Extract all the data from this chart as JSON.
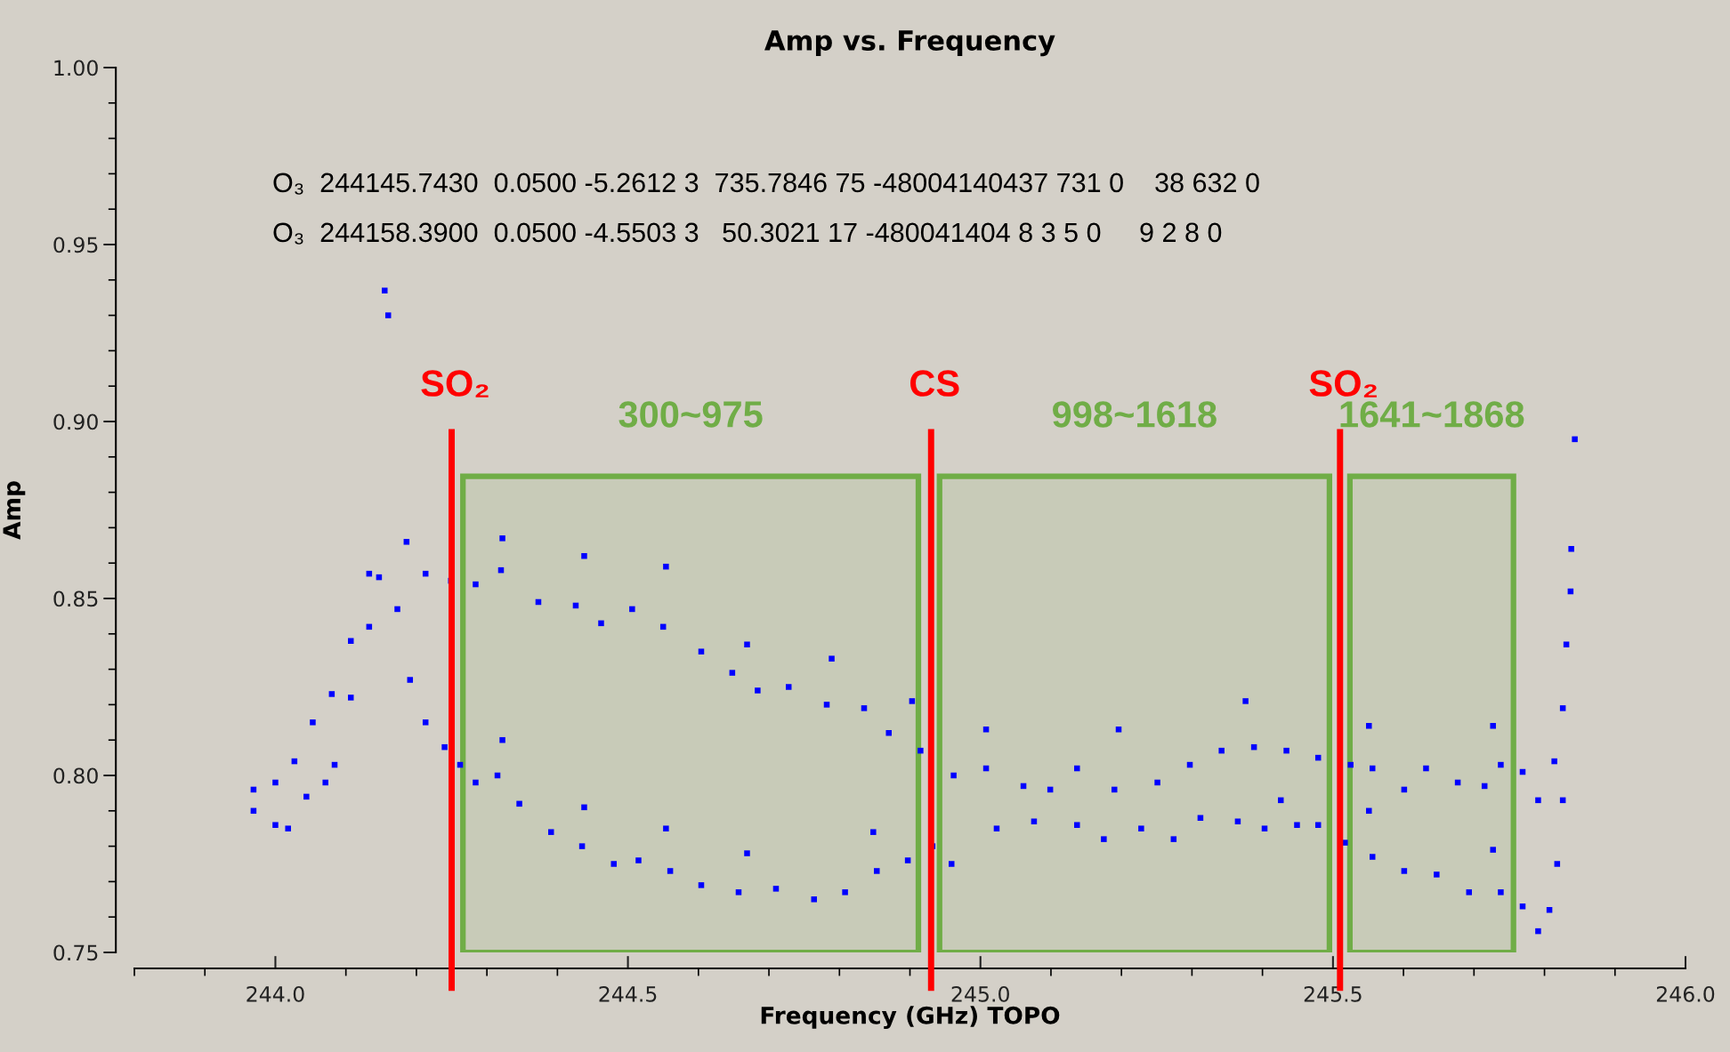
{
  "chart_data": {
    "type": "scatter",
    "title": "Amp vs. Frequency",
    "xlabel": "Frequency (GHz) TOPO",
    "ylabel": "Amp",
    "xlim": [
      243.8,
      246.0
    ],
    "ylim": [
      0.75,
      1.0
    ],
    "xticks": [
      {
        "value": 244,
        "label": "244.0"
      },
      244.5,
      {
        "value": 245,
        "label": "245.0"
      },
      245.5,
      {
        "value": 246,
        "label": "246.0"
      }
    ],
    "yticks": [
      0.75,
      {
        "value": 0.8,
        "label": "0.80"
      },
      0.85,
      {
        "value": 0.9,
        "label": "0.90"
      },
      0.95,
      {
        "value": 1.0,
        "label": "1.00"
      }
    ],
    "grid": false,
    "legend": false,
    "marker": "square",
    "series": [
      {
        "color": "#0000ff",
        "x": [
          243.969,
          244.0,
          244.027,
          244.053,
          244.08,
          244.107,
          244.133,
          244.155,
          244.186,
          244.213,
          244.249,
          244.284,
          244.32,
          244.373,
          244.426,
          244.462,
          244.506,
          244.55,
          244.604,
          244.648,
          244.684,
          244.728,
          244.782,
          244.835,
          244.87,
          244.915,
          244.962,
          245.008,
          245.061,
          245.099,
          245.137,
          245.19,
          245.251,
          245.297,
          245.342,
          245.388,
          245.434,
          245.479,
          245.525,
          245.556,
          245.601,
          245.632,
          245.677,
          245.715,
          245.738,
          245.769,
          245.791,
          245.814,
          245.826,
          245.831,
          245.837,
          245.838,
          245.843,
          244.322,
          244.438,
          244.554,
          244.669,
          244.789,
          244.903,
          245.008,
          245.196,
          245.376,
          245.551,
          245.727
        ],
        "values": [
          0.796,
          0.798,
          0.804,
          0.815,
          0.823,
          0.838,
          0.857,
          0.937,
          0.866,
          0.857,
          0.855,
          0.854,
          0.858,
          0.849,
          0.848,
          0.843,
          0.847,
          0.842,
          0.835,
          0.829,
          0.824,
          0.825,
          0.82,
          0.819,
          0.812,
          0.807,
          0.8,
          0.802,
          0.797,
          0.796,
          0.802,
          0.796,
          0.798,
          0.803,
          0.807,
          0.808,
          0.807,
          0.805,
          0.803,
          0.802,
          0.796,
          0.802,
          0.798,
          0.797,
          0.803,
          0.801,
          0.793,
          0.804,
          0.819,
          0.837,
          0.852,
          0.864,
          0.895,
          0.867,
          0.862,
          0.859,
          0.837,
          0.833,
          0.821,
          0.813,
          0.813,
          0.821,
          0.814,
          0.814
        ]
      },
      {
        "color": "#0000ff",
        "x": [
          243.969,
          244.0,
          244.018,
          244.044,
          244.071,
          244.084,
          244.107,
          244.133,
          244.147,
          244.16,
          244.173,
          244.191,
          244.213,
          244.24,
          244.262,
          244.284,
          244.315,
          244.346,
          244.391,
          244.435,
          244.48,
          244.515,
          244.56,
          244.604,
          244.657,
          244.71,
          244.764,
          244.808,
          244.853,
          244.897,
          244.932,
          244.959,
          245.023,
          245.076,
          245.137,
          245.175,
          245.228,
          245.274,
          245.312,
          245.365,
          245.403,
          245.426,
          245.449,
          245.479,
          245.517,
          245.556,
          245.601,
          245.647,
          245.693,
          245.738,
          245.769,
          245.791,
          245.807,
          245.818,
          245.826,
          244.322,
          244.438,
          244.554,
          244.669,
          244.848,
          245.551,
          245.727
        ],
        "values": [
          0.79,
          0.786,
          0.785,
          0.794,
          0.798,
          0.803,
          0.822,
          0.842,
          0.856,
          0.93,
          0.847,
          0.827,
          0.815,
          0.808,
          0.803,
          0.798,
          0.8,
          0.792,
          0.784,
          0.78,
          0.775,
          0.776,
          0.773,
          0.769,
          0.767,
          0.768,
          0.765,
          0.767,
          0.773,
          0.776,
          0.78,
          0.775,
          0.785,
          0.787,
          0.786,
          0.782,
          0.785,
          0.782,
          0.788,
          0.787,
          0.785,
          0.793,
          0.786,
          0.786,
          0.781,
          0.777,
          0.773,
          0.772,
          0.767,
          0.767,
          0.763,
          0.756,
          0.762,
          0.775,
          0.793,
          0.81,
          0.791,
          0.785,
          0.778,
          0.784,
          0.79,
          0.779
        ]
      }
    ],
    "ref_lines": [
      {
        "axis": "x",
        "value": 244.25,
        "label": "SO₂",
        "color": "#ff0000",
        "line_style": "solid"
      },
      {
        "axis": "x",
        "value": 244.93,
        "label": "CS",
        "color": "#ff0000",
        "line_style": "solid"
      },
      {
        "axis": "x",
        "value": 245.51,
        "label": "SO₂",
        "color": "#ff0000",
        "line_style": "solid"
      }
    ],
    "bands": [
      {
        "axis": "x",
        "from": 244.266,
        "to": 244.912,
        "label": "300~975",
        "color": "#70ad47"
      },
      {
        "axis": "x",
        "from": 244.942,
        "to": 245.495,
        "label": "998~1618",
        "color": "#70ad47"
      },
      {
        "axis": "x",
        "from": 245.524,
        "to": 245.756,
        "label": "1641~1868",
        "color": "#70ad47"
      }
    ],
    "annotations": [
      "O₃  244145.7430  0.0500 -5.2612 3  735.7846 75 -48004140437 731 0    38 632 0",
      "O₃  244158.3900  0.0500 -4.5503 3   50.3021 17 -480041404 8 3 5 0     9 2 8 0"
    ]
  }
}
